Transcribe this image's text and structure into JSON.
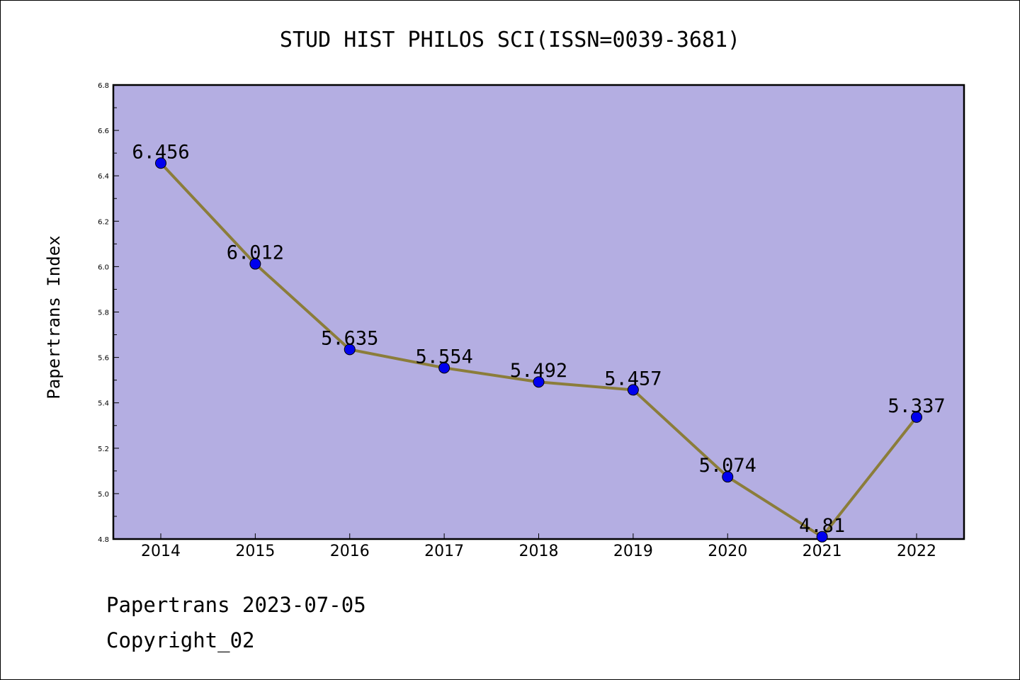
{
  "chart_data": {
    "type": "line",
    "title": "STUD HIST PHILOS SCI(ISSN=0039-3681)",
    "xlabel": "",
    "ylabel": "Papertrans Index",
    "categories": [
      "2014",
      "2015",
      "2016",
      "2017",
      "2018",
      "2019",
      "2020",
      "2021",
      "2022"
    ],
    "values": [
      6.456,
      6.012,
      5.635,
      5.554,
      5.492,
      5.457,
      5.074,
      4.81,
      5.337
    ],
    "value_labels": [
      "6.456",
      "6.012",
      "5.635",
      "5.554",
      "5.492",
      "5.457",
      "5.074",
      "4.81",
      "5.337"
    ],
    "ylim": [
      4.8,
      6.8
    ],
    "yticks": [
      "4.8",
      "5.0",
      "5.2",
      "5.4",
      "5.6",
      "5.8",
      "6.0",
      "6.2",
      "6.4",
      "6.6",
      "6.8"
    ],
    "grid": false,
    "legend": "none",
    "colors": {
      "plot_background": "#b4aee2",
      "line": "#8b7d3a",
      "marker": "#0000ee"
    }
  },
  "footer": {
    "line1": "Papertrans 2023-07-05",
    "line2": "Copyright_02"
  }
}
